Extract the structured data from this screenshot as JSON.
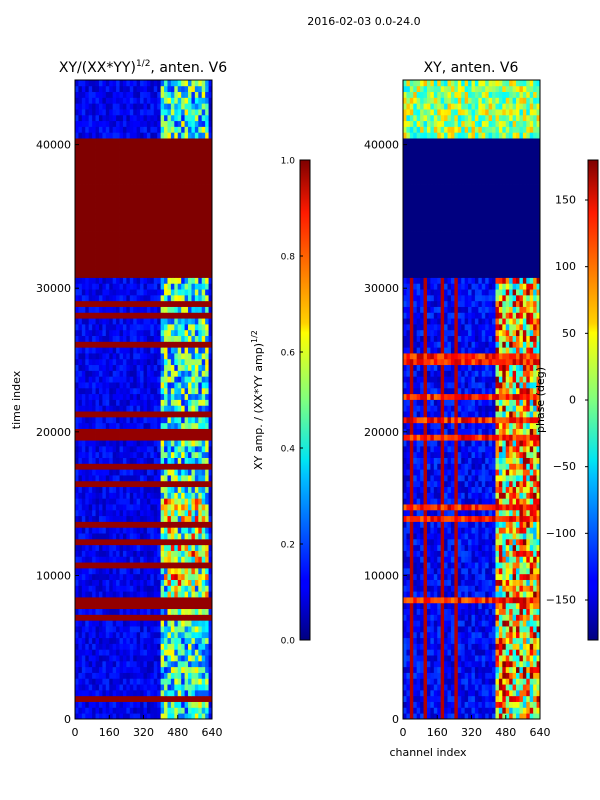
{
  "figure": {
    "suptitle": "2016-02-03 0.0-24.0"
  },
  "chart_data": [
    {
      "type": "heatmap",
      "title": "XY/(XX*YY)^{1/2}, anten. V6",
      "title_main": "XY/(XX*YY)",
      "title_sup": "1/2",
      "title_tail": ", anten. V6",
      "xlabel": "",
      "ylabel": "time index",
      "xlim": [
        0,
        640
      ],
      "ylim": [
        0,
        44500
      ],
      "xticks": [
        0,
        160,
        320,
        480,
        640
      ],
      "yticks": [
        0,
        10000,
        20000,
        30000,
        40000
      ],
      "colorbar": {
        "label": "XY amp. / (XX*YY amp)^{1/2}",
        "label_main": "XY amp. / (XX*YY amp)",
        "label_sup": "1/2",
        "range": [
          0.0,
          1.0
        ],
        "ticks": [
          0.0,
          0.2,
          0.4,
          0.6,
          0.8,
          1.0
        ],
        "tick_labels": [
          "0.0",
          "0.2",
          "0.4",
          "0.6",
          "0.8",
          "1.0"
        ]
      },
      "regions": [
        {
          "desc": "flagged block (max value)",
          "x": [
            0,
            640
          ],
          "y": [
            30500,
            40300
          ],
          "value": 1.0
        },
        {
          "desc": "low-amplitude background",
          "x": [
            0,
            400
          ],
          "y": [
            0,
            44500
          ],
          "value": 0.05
        },
        {
          "desc": "elevated channels",
          "x": [
            400,
            640
          ],
          "y": [
            0,
            44500
          ],
          "value": 0.35
        }
      ]
    },
    {
      "type": "heatmap",
      "title": "XY, anten. V6",
      "xlabel": "channel index",
      "ylabel": "",
      "xlim": [
        0,
        640
      ],
      "ylim": [
        0,
        44500
      ],
      "xticks": [
        0,
        160,
        320,
        480,
        640
      ],
      "yticks": [
        0,
        10000,
        20000,
        30000,
        40000
      ],
      "colorbar": {
        "label": "phase (deg)",
        "range": [
          -180,
          180
        ],
        "ticks": [
          -150,
          -100,
          -50,
          0,
          50,
          100,
          150
        ],
        "tick_labels": [
          "−150",
          "−100",
          "−50",
          "0",
          "50",
          "100",
          "150"
        ]
      },
      "regions": [
        {
          "desc": "flagged block (min phase)",
          "x": [
            0,
            640
          ],
          "y": [
            30500,
            40300
          ],
          "value": -180
        },
        {
          "desc": "vertical stripes of high phase",
          "x": [
            20,
            270
          ],
          "y": [
            0,
            30000
          ],
          "value": 170
        },
        {
          "desc": "mixed phase channels",
          "x": [
            400,
            640
          ],
          "y": [
            0,
            30000
          ],
          "value": 60
        }
      ]
    }
  ]
}
